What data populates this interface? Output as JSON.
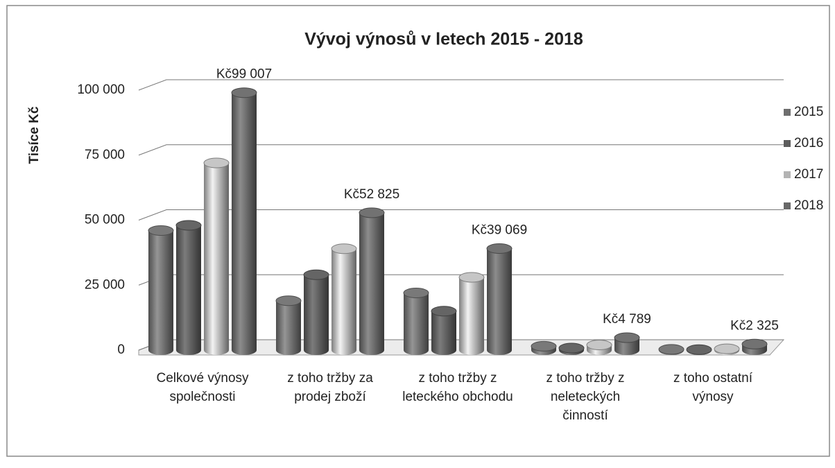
{
  "chart_data": {
    "type": "bar",
    "title": "Vývoj výnosů v letech 2015 - 2018",
    "y_label": "Tisíce Kč",
    "categories": [
      "Celkové výnosy společnosti",
      "z toho tržby za prodej zboží",
      "z toho tržby z leteckého obchodu",
      "z toho tržby z neleteckých činností",
      "z toho ostatní výnosy"
    ],
    "series": [
      {
        "name": "2015",
        "color": "#6e6e6e",
        "values": [
          46000,
          19000,
          22000,
          1500,
          300
        ]
      },
      {
        "name": "2016",
        "color": "#5c5c5c",
        "values": [
          48000,
          29000,
          15000,
          800,
          200
        ]
      },
      {
        "name": "2017",
        "color": "#b4b4b4",
        "values": [
          72000,
          39000,
          28000,
          2000,
          500
        ]
      },
      {
        "name": "2018",
        "color": "#686868",
        "values": [
          99007,
          52825,
          39069,
          4789,
          2325
        ],
        "value_labels": [
          "Kč99 007",
          "Kč52 825",
          "Kč39 069",
          "Kč4 789",
          "Kč2 325"
        ]
      }
    ],
    "ylim": [
      0,
      100000
    ],
    "yticks": [
      0,
      {
        "value": 25000,
        "label": "25 000"
      },
      {
        "value": 50000,
        "label": "50 000"
      },
      {
        "value": 75000,
        "label": "75 000"
      },
      {
        "value": 100000,
        "label": "100 000"
      }
    ],
    "grid": true,
    "legend": "right"
  }
}
